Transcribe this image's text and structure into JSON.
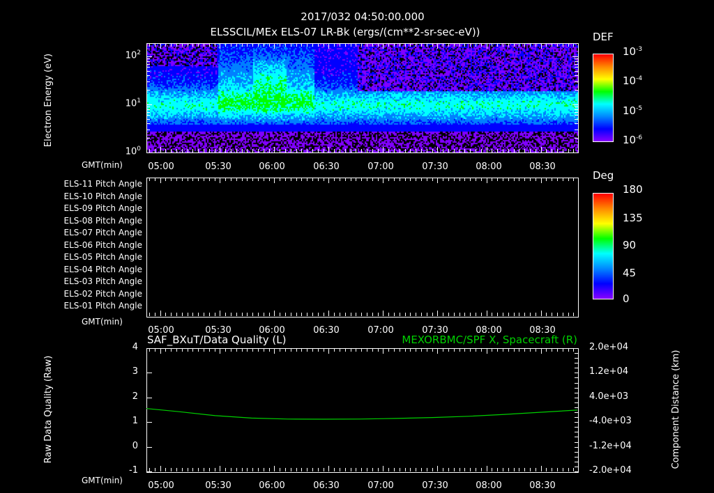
{
  "header": {
    "timestamp": "2017/032 04:50:00.000",
    "title": "ELSSCIL/MEx ELS-07 LR-Bk  (ergs/(cm**2-sr-sec-eV))"
  },
  "time_axis": {
    "label": "GMT(min)",
    "ticks": [
      "05:00",
      "05:30",
      "06:00",
      "06:30",
      "07:00",
      "07:30",
      "08:00",
      "08:30"
    ]
  },
  "chart_data": [
    {
      "type": "heatmap",
      "title": "ELSSCIL/MEx ELS-07 LR-Bk (ergs/(cm**2-sr-sec-eV))",
      "ylabel": "Electron Energy (eV)",
      "yscale": "log",
      "ylim": [
        1,
        178
      ],
      "yticks": [
        {
          "base": "10",
          "exp": "0"
        },
        {
          "base": "10",
          "exp": "1"
        },
        {
          "base": "10",
          "exp": "2"
        }
      ],
      "xlabel": "GMT(min)",
      "xlim_minutes_after_0450": [
        2,
        240
      ],
      "colorbar": {
        "label": "DEF",
        "range": [
          1e-06,
          0.001
        ],
        "ticks": [
          {
            "base": "10",
            "exp": "-3"
          },
          {
            "base": "10",
            "exp": "-4"
          },
          {
            "base": "10",
            "exp": "-5"
          },
          {
            "base": "10",
            "exp": "-6"
          }
        ]
      }
    },
    {
      "type": "heatmap",
      "title": "Pitch Angle",
      "rows": [
        "ELS-11 Pitch Angle",
        "ELS-10 Pitch Angle",
        "ELS-09 Pitch Angle",
        "ELS-08 Pitch Angle",
        "ELS-07 Pitch Angle",
        "ELS-06 Pitch Angle",
        "ELS-05 Pitch Angle",
        "ELS-04 Pitch Angle",
        "ELS-03 Pitch Angle",
        "ELS-02 Pitch Angle",
        "ELS-01 Pitch Angle"
      ],
      "colorbar": {
        "label": "Deg",
        "range": [
          0,
          180
        ],
        "ticks": [
          "180",
          "135",
          "90",
          "45",
          "0"
        ]
      },
      "values": []
    },
    {
      "type": "line",
      "left_title": "SAF_BXuT/Data Quality (L)",
      "right_title": "MEXORBMC/SPF X, Spacecraft (R)",
      "ylabel_left": "Raw Data Quality (Raw)",
      "ylabel_right": "Component Distance (km)",
      "ylim_left": [
        -1,
        4
      ],
      "yticks_left": [
        "4",
        "3",
        "2",
        "1",
        "0",
        "-1"
      ],
      "ylim_right": [
        -20000,
        20000
      ],
      "yticks_right": [
        "2.0e+04",
        "1.2e+04",
        "4.0e+03",
        "-4.0e+03",
        "-1.2e+04",
        "-2.0e+04"
      ],
      "series": [
        {
          "name": "MEXORBMC/SPF X, Spacecraft",
          "axis": "right",
          "color": "#00d000",
          "x_minutes_after_0450": [
            2,
            20,
            40,
            60,
            80,
            100,
            120,
            140,
            160,
            180,
            200,
            220,
            240
          ],
          "values": [
            400,
            -600,
            -1900,
            -2700,
            -3000,
            -3050,
            -3000,
            -2800,
            -2500,
            -2100,
            -1500,
            -800,
            -100
          ]
        }
      ]
    }
  ]
}
